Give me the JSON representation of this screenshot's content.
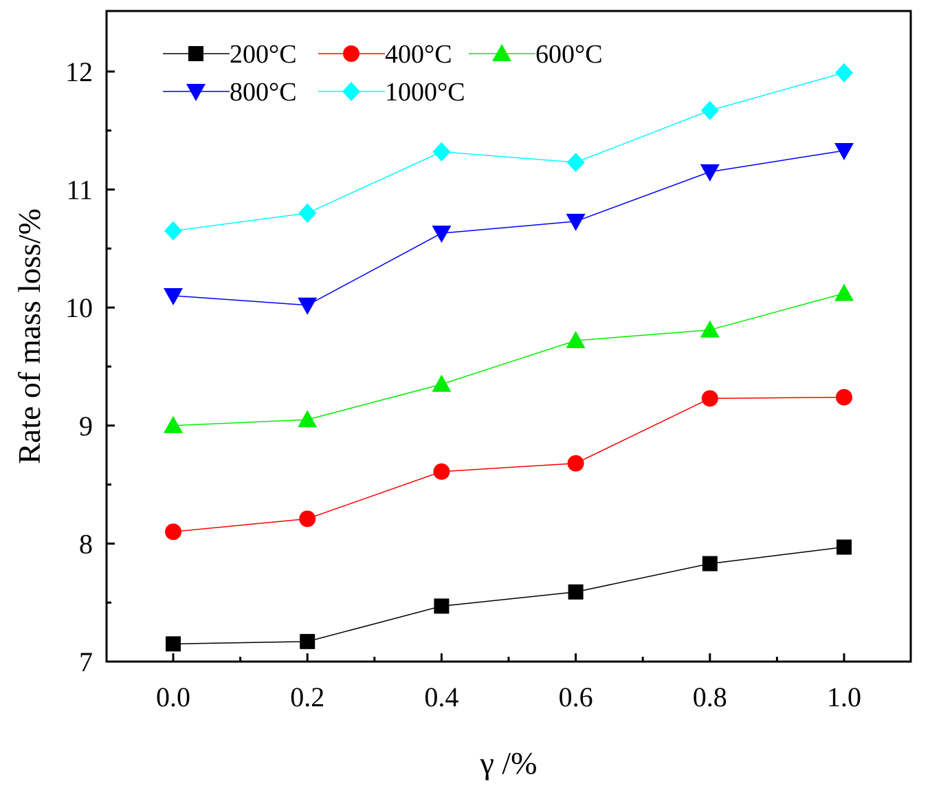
{
  "chart_data": {
    "type": "line",
    "title": "",
    "xlabel": "γ /%",
    "ylabel": "Rate of mass loss/%",
    "xlim": [
      -0.1,
      1.1
    ],
    "ylim": [
      7,
      12.5
    ],
    "x": [
      0.0,
      0.2,
      0.4,
      0.6,
      0.8,
      1.0
    ],
    "x_tick_labels": [
      "0.0",
      "0.2",
      "0.4",
      "0.6",
      "0.8",
      "1.0"
    ],
    "y_ticks": [
      7,
      8,
      9,
      10,
      11,
      12
    ],
    "y_tick_labels": [
      "7",
      "8",
      "9",
      "10",
      "11",
      "12"
    ],
    "grid": false,
    "legend_position": "top-left",
    "series": [
      {
        "name": "200°C",
        "color": "#000000",
        "marker": "square",
        "values": [
          7.15,
          7.17,
          7.47,
          7.59,
          7.83,
          7.97
        ]
      },
      {
        "name": "400°C",
        "color": "#ff0000",
        "marker": "circle",
        "values": [
          8.1,
          8.21,
          8.61,
          8.68,
          9.23,
          9.24
        ]
      },
      {
        "name": "600°C",
        "color": "#00ee00",
        "marker": "triangle-up",
        "values": [
          9.0,
          9.05,
          9.35,
          9.72,
          9.81,
          10.12
        ]
      },
      {
        "name": "800°C",
        "color": "#0000ff",
        "marker": "triangle-down",
        "values": [
          10.1,
          10.02,
          10.63,
          10.73,
          11.15,
          11.33
        ]
      },
      {
        "name": "1000°C",
        "color": "#00ffff",
        "marker": "diamond",
        "values": [
          10.65,
          10.8,
          11.32,
          11.23,
          11.67,
          11.99
        ]
      }
    ]
  }
}
